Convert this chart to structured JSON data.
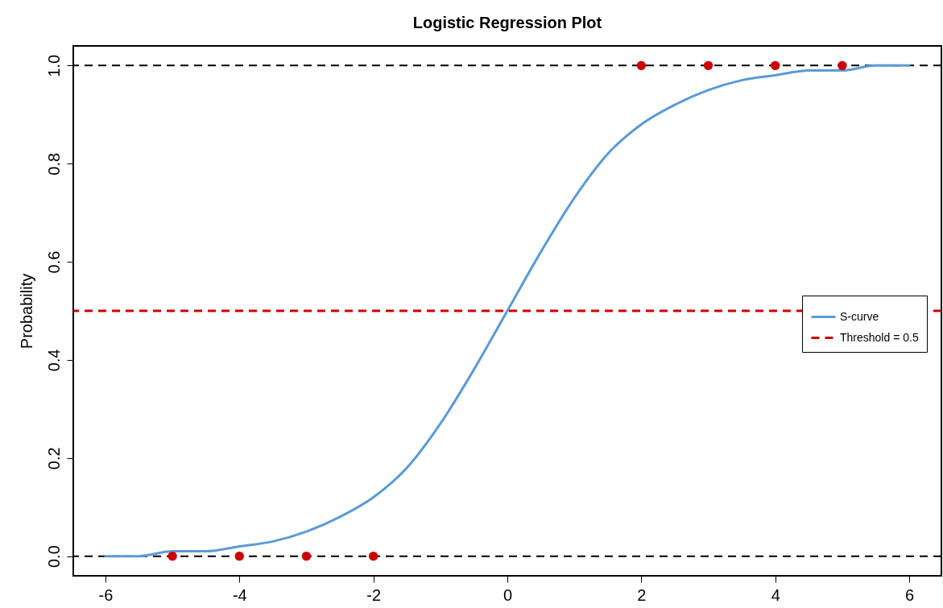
{
  "chart_data": {
    "type": "line",
    "title": "Logistic Regression Plot",
    "ylabel": "Probability",
    "series": [
      {
        "name": "S-curve",
        "color": "#5b9bd5",
        "line_style": "solid",
        "x": [
          -6,
          -5.5,
          -5,
          -4.5,
          -4,
          -3.5,
          -3,
          -2.5,
          -2,
          -1.5,
          -1,
          -0.5,
          0,
          0.5,
          1,
          1.5,
          2,
          2.5,
          3,
          3.5,
          4,
          4.5,
          5,
          5.5,
          6
        ],
        "values": [
          0.0,
          0.0,
          0.01,
          0.01,
          0.02,
          0.03,
          0.05,
          0.08,
          0.12,
          0.18,
          0.27,
          0.38,
          0.5,
          0.62,
          0.73,
          0.82,
          0.88,
          0.92,
          0.95,
          0.97,
          0.98,
          0.99,
          0.99,
          1.0,
          1.0
        ]
      },
      {
        "type": "scatter",
        "color": "#cc0000",
        "marker": "circle",
        "x": [
          -5,
          -4,
          -3,
          -2,
          2,
          3,
          4,
          5
        ],
        "values": [
          0,
          0,
          0,
          0,
          1,
          1,
          1,
          1
        ]
      }
    ],
    "ref_lines": [
      {
        "axis": "y",
        "value": 0,
        "color": "#000000",
        "line_style": "dashed"
      },
      {
        "axis": "y",
        "value": 1,
        "color": "#000000",
        "line_style": "dashed"
      },
      {
        "axis": "y",
        "value": 0.5,
        "label": "Threshold = 0.5",
        "color": "#cc0000",
        "line_style": "dashed"
      }
    ],
    "xlim": [
      -6.48,
      6.48
    ],
    "xticks": [
      -6,
      -4,
      -2,
      0,
      2,
      4,
      6
    ],
    "ylim": [
      -0.04,
      1.04
    ],
    "yticks": [
      {
        "value": 0,
        "label": "0.0"
      },
      0.2,
      0.4,
      0.6,
      0.8,
      {
        "value": 1,
        "label": "1.0"
      }
    ],
    "grid": false,
    "legend": "right"
  }
}
